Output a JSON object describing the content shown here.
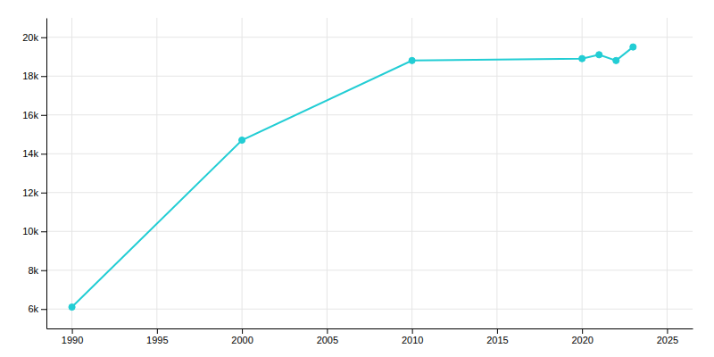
{
  "chart_data": {
    "type": "line",
    "x": [
      1990,
      2000,
      2010,
      2020,
      2021,
      2022,
      2023
    ],
    "values": [
      6100,
      14700,
      18800,
      18900,
      19100,
      18800,
      19500
    ],
    "color": "#22cdd4",
    "marker": "circle",
    "xlim": [
      1988.5,
      2026.5
    ],
    "ylim": [
      5000,
      21000
    ],
    "xticks": [
      1990,
      1995,
      2000,
      2005,
      2010,
      2015,
      2020,
      2025
    ],
    "yticks": [
      {
        "value": 6000,
        "label": "6k"
      },
      {
        "value": 8000,
        "label": "8k"
      },
      {
        "value": 10000,
        "label": "10k"
      },
      {
        "value": 12000,
        "label": "12k"
      },
      {
        "value": 14000,
        "label": "14k"
      },
      {
        "value": 16000,
        "label": "16k"
      },
      {
        "value": 18000,
        "label": "18k"
      },
      {
        "value": 20000,
        "label": "20k"
      }
    ],
    "grid": true
  }
}
